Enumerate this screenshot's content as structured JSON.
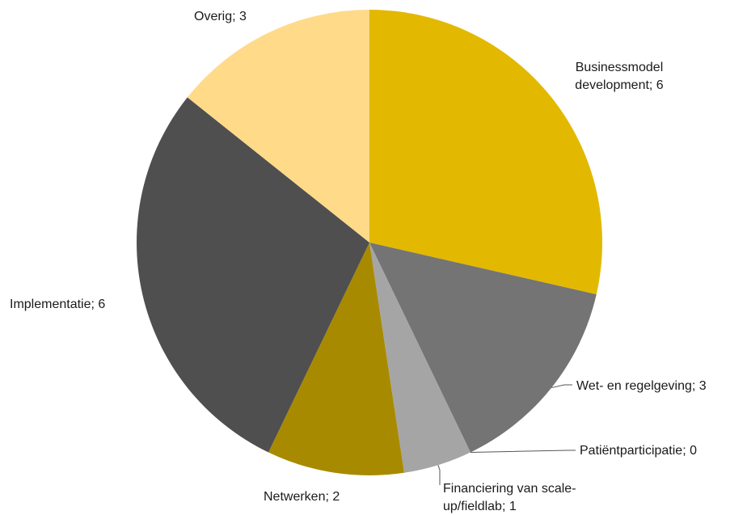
{
  "chart_data": {
    "type": "pie",
    "title": "",
    "slices": [
      {
        "name": "Businessmodel development",
        "value": 6,
        "color": "#E2B900",
        "label_lines": [
          "Businessmodel",
          "development; 6"
        ]
      },
      {
        "name": "Wet- en regelgeving",
        "value": 3,
        "color": "#747474",
        "label_lines": [
          "Wet- en regelgeving; 3"
        ]
      },
      {
        "name": "Patiëntparticipatie",
        "value": 0,
        "color": "#BDBDBD",
        "label_lines": [
          "Patiëntparticipatie; 0"
        ]
      },
      {
        "name": "Financiering van scale-up/fieldlab",
        "value": 1,
        "color": "#A5A5A5",
        "label_lines": [
          "Financiering van scale-",
          "up/fieldlab; 1"
        ]
      },
      {
        "name": "Netwerken",
        "value": 2,
        "color": "#A88A00",
        "label_lines": [
          "Netwerken; 2"
        ]
      },
      {
        "name": "Implementatie",
        "value": 6,
        "color": "#4F4F4F",
        "label_lines": [
          "Implementatie; 6"
        ]
      },
      {
        "name": "Overig",
        "value": 3,
        "color": "#FFDA89",
        "label_lines": [
          "Overig; 3"
        ]
      }
    ]
  }
}
